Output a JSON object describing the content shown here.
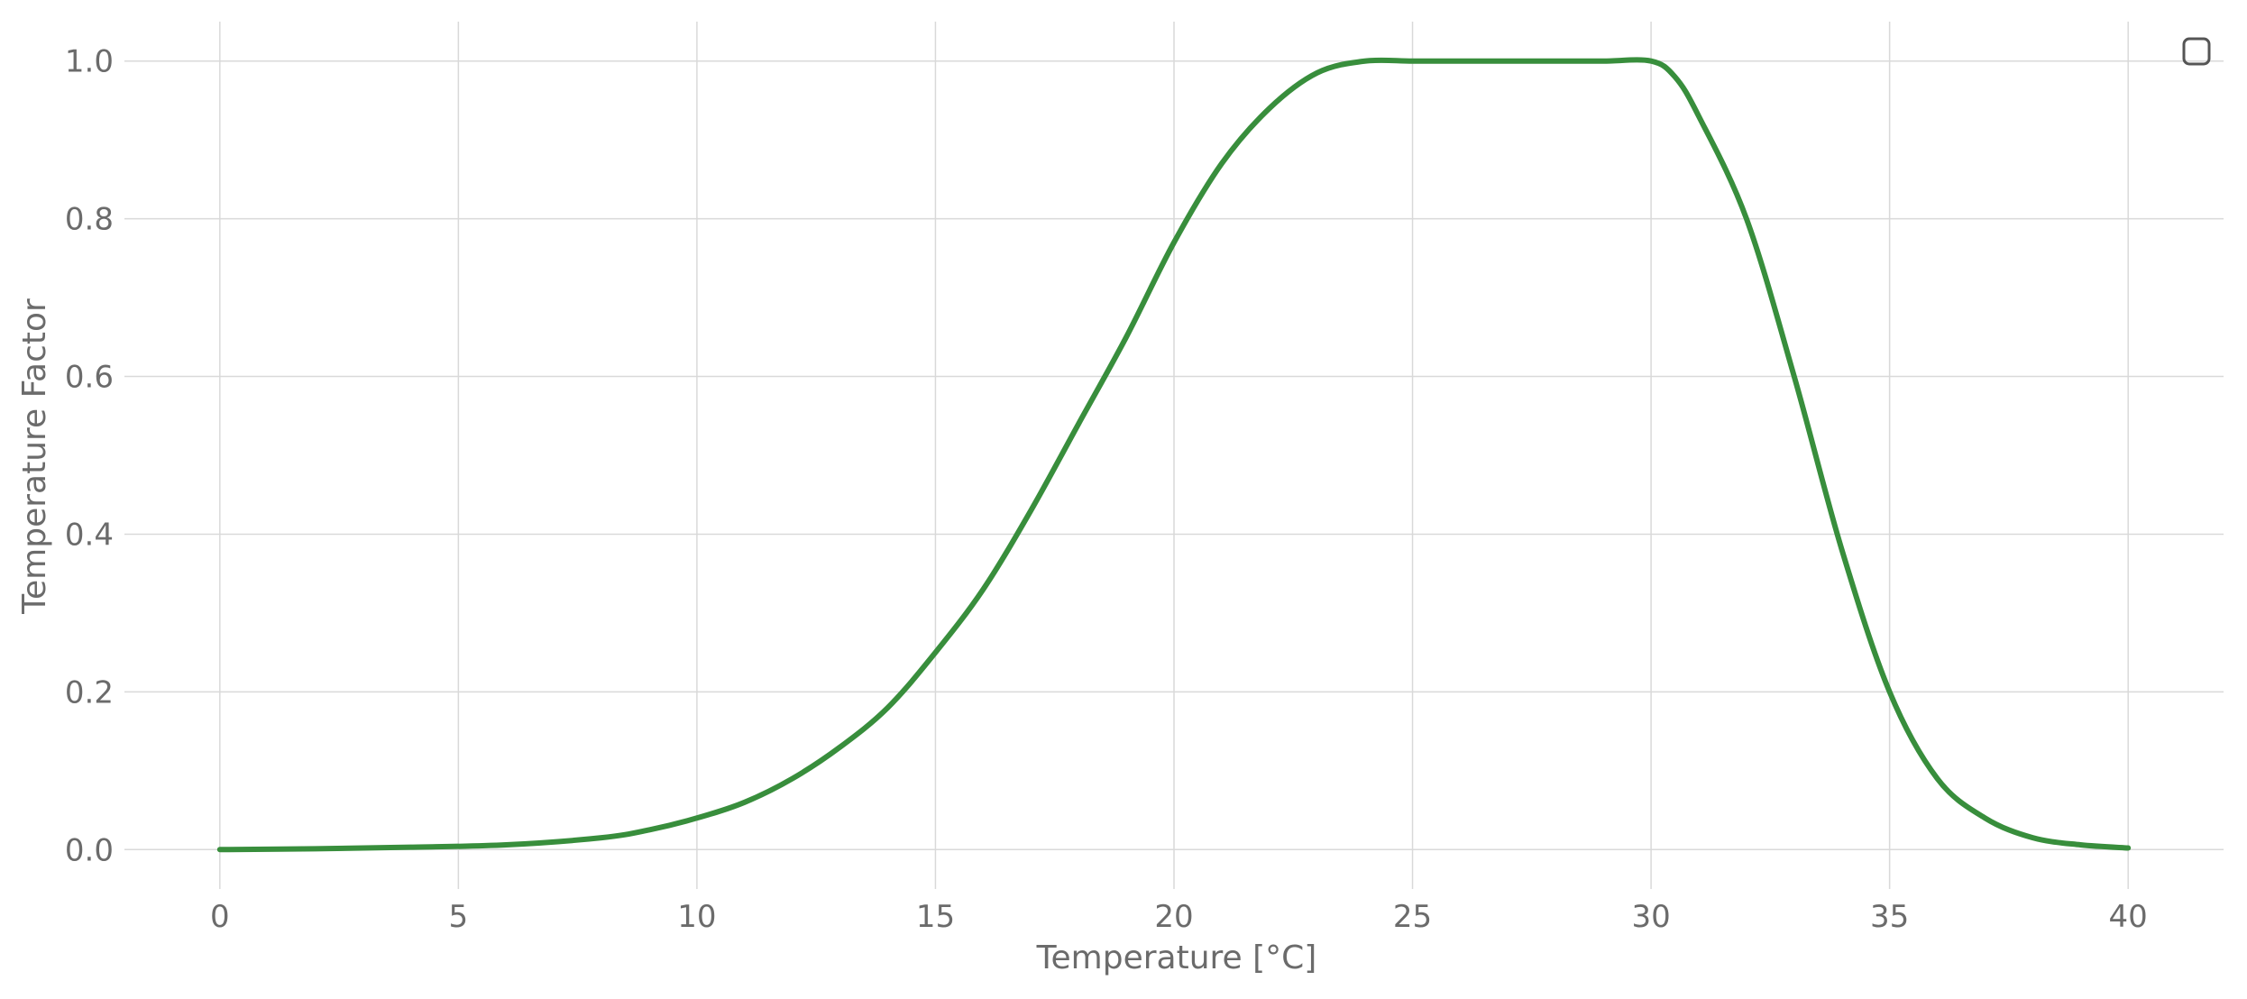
{
  "chart_data": {
    "type": "line",
    "title": "",
    "xlabel": "Temperature [°C]",
    "ylabel": "Temperature Factor",
    "xlim": [
      -2,
      42
    ],
    "ylim": [
      -0.05,
      1.05
    ],
    "xticks": [
      0,
      5,
      10,
      15,
      20,
      25,
      30,
      35,
      40
    ],
    "yticks": [
      0.0,
      0.2,
      0.4,
      0.6,
      0.8,
      1.0
    ],
    "ytick_labels": [
      "0.0",
      "0.2",
      "0.4",
      "0.6",
      "0.8",
      "1.0"
    ],
    "grid": true,
    "legend": "top-right (empty)",
    "series": [
      {
        "color": "#388e3c",
        "x": [
          0,
          2,
          4,
          6,
          8,
          9,
          10,
          11,
          12,
          13,
          14,
          15,
          16,
          17,
          18,
          19,
          20,
          21,
          22,
          23,
          24,
          25,
          26,
          27,
          28,
          29,
          30,
          30.5,
          31,
          32,
          33,
          34,
          35,
          36,
          37,
          38,
          39,
          40
        ],
        "y": [
          0.0,
          0.001,
          0.003,
          0.006,
          0.015,
          0.025,
          0.04,
          0.06,
          0.09,
          0.13,
          0.18,
          0.25,
          0.33,
          0.43,
          0.54,
          0.65,
          0.77,
          0.87,
          0.94,
          0.985,
          1.0,
          1.0,
          1.0,
          1.0,
          1.0,
          1.0,
          1.0,
          0.98,
          0.93,
          0.8,
          0.6,
          0.38,
          0.2,
          0.09,
          0.04,
          0.015,
          0.006,
          0.002
        ]
      }
    ]
  }
}
